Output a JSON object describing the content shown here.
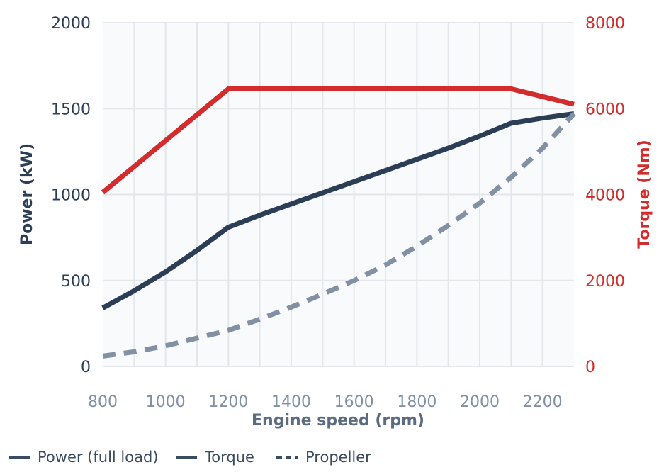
{
  "chart_data": {
    "type": "line",
    "xlabel": "Engine speed (rpm)",
    "ylabel_left": "Power (kW)",
    "ylabel_right": "Torque (Nm)",
    "xlim": [
      800,
      2300
    ],
    "ylim_left": [
      0,
      2000
    ],
    "ylim_right": [
      0,
      8000
    ],
    "x_ticks": [
      800,
      1000,
      1200,
      1400,
      1600,
      1800,
      2000,
      2200
    ],
    "y_left_ticks": [
      0,
      500,
      1000,
      1500,
      2000
    ],
    "y_right_ticks": [
      0,
      2000,
      4000,
      6000,
      8000
    ],
    "grid": true,
    "legend_position": "bottom-left",
    "colors": {
      "power": "#2b3e55",
      "torque": "#d22c2c",
      "propeller": "#8191a3",
      "plot_bg": "#f8fafc",
      "grid": "#e3e7ec"
    },
    "series": [
      {
        "name": "Power (full load)",
        "axis": "left",
        "style": "solid",
        "color": "#2b3e55",
        "x": [
          800,
          900,
          1000,
          1100,
          1200,
          1300,
          1400,
          1500,
          1600,
          1700,
          1800,
          1900,
          2000,
          2100,
          2200,
          2300
        ],
        "y": [
          340,
          440,
          550,
          675,
          810,
          880,
          945,
          1010,
          1075,
          1140,
          1205,
          1270,
          1340,
          1415,
          1445,
          1470
        ]
      },
      {
        "name": "Torque",
        "axis": "right",
        "style": "solid",
        "color": "#d22c2c",
        "x": [
          800,
          1200,
          1400,
          1600,
          1800,
          2000,
          2100,
          2300
        ],
        "y": [
          4050,
          6460,
          6460,
          6460,
          6460,
          6460,
          6460,
          6100
        ]
      },
      {
        "name": "Propeller",
        "axis": "left",
        "style": "dashed",
        "color": "#8191a3",
        "x": [
          800,
          900,
          1000,
          1100,
          1200,
          1300,
          1400,
          1500,
          1600,
          1700,
          1800,
          1900,
          2000,
          2100,
          2200,
          2300
        ],
        "y": [
          60,
          85,
          120,
          165,
          210,
          275,
          345,
          420,
          500,
          590,
          700,
          820,
          950,
          1100,
          1270,
          1470
        ]
      }
    ],
    "legend": [
      {
        "label": "Power (full load)",
        "style": "solid",
        "color": "#3b4c60"
      },
      {
        "label": "Torque",
        "style": "solid",
        "color": "#3b4c60"
      },
      {
        "label": "Propeller",
        "style": "dashed",
        "color": "#3b4c60"
      }
    ]
  }
}
